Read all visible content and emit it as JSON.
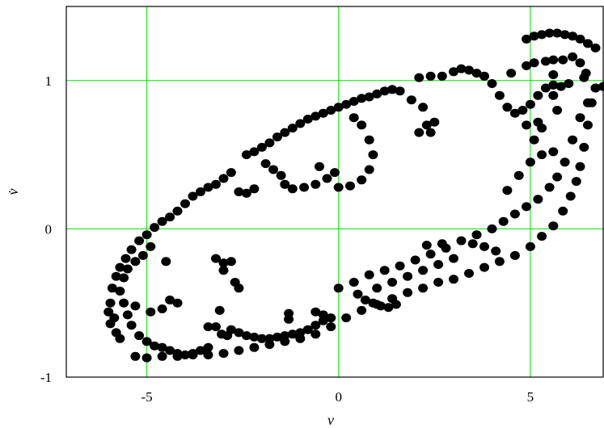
{
  "chart_data": {
    "type": "scatter",
    "title": "",
    "xlabel": "v",
    "ylabel": "v̇",
    "xlim": [
      -7.1,
      6.9
    ],
    "ylim": [
      -1.0,
      1.5
    ],
    "xticks": [
      -5,
      0,
      5
    ],
    "xtick_labels": [
      "-5",
      "0",
      "5"
    ],
    "yticks": [
      -1,
      0,
      1
    ],
    "ytick_labels": [
      "-1",
      "0",
      "1"
    ],
    "grid": true,
    "grid_color": "#00e000",
    "marker_color": "#000000",
    "series": [
      {
        "points": [
          [
            -5.95,
            -0.5
          ],
          [
            -5.9,
            -0.4
          ],
          [
            -5.8,
            -0.32
          ],
          [
            -5.7,
            -0.26
          ],
          [
            -5.55,
            -0.2
          ],
          [
            -5.4,
            -0.14
          ],
          [
            -5.2,
            -0.08
          ],
          [
            -5.0,
            -0.04
          ],
          [
            -4.8,
            0.01
          ],
          [
            -4.6,
            0.05
          ],
          [
            -4.4,
            0.08
          ],
          [
            -4.2,
            0.12
          ],
          [
            -4.0,
            0.17
          ],
          [
            -3.8,
            0.22
          ],
          [
            -3.6,
            0.25
          ],
          [
            -3.4,
            0.28
          ],
          [
            -3.2,
            0.3
          ],
          [
            -3.0,
            0.34
          ],
          [
            -2.8,
            0.38
          ],
          [
            -2.6,
            0.25
          ],
          [
            -2.4,
            0.24
          ],
          [
            -2.2,
            0.27
          ],
          [
            -2.4,
            0.5
          ],
          [
            -2.2,
            0.52
          ],
          [
            -2.0,
            0.55
          ],
          [
            -1.8,
            0.58
          ],
          [
            -1.6,
            0.62
          ],
          [
            -1.4,
            0.65
          ],
          [
            -1.2,
            0.68
          ],
          [
            -1.0,
            0.71
          ],
          [
            -0.8,
            0.74
          ],
          [
            -0.6,
            0.76
          ],
          [
            -0.4,
            0.78
          ],
          [
            -0.2,
            0.8
          ],
          [
            0.0,
            0.82
          ],
          [
            0.2,
            0.84
          ],
          [
            0.4,
            0.86
          ],
          [
            0.6,
            0.88
          ],
          [
            0.8,
            0.89
          ],
          [
            1.0,
            0.91
          ],
          [
            1.2,
            0.93
          ],
          [
            1.4,
            0.94
          ],
          [
            1.6,
            0.93
          ],
          [
            1.9,
            0.87
          ],
          [
            2.2,
            0.82
          ],
          [
            -1.9,
            0.44
          ],
          [
            -1.7,
            0.4
          ],
          [
            -1.5,
            0.36
          ],
          [
            -1.4,
            0.3
          ],
          [
            -1.2,
            0.27
          ],
          [
            -0.9,
            0.28
          ],
          [
            -0.6,
            0.3
          ],
          [
            -0.3,
            0.34
          ],
          [
            0.0,
            0.28
          ],
          [
            0.3,
            0.29
          ],
          [
            0.6,
            0.33
          ],
          [
            0.8,
            0.4
          ],
          [
            0.9,
            0.5
          ],
          [
            0.8,
            0.6
          ],
          [
            0.6,
            0.7
          ],
          [
            0.4,
            0.75
          ],
          [
            -0.1,
            0.38
          ],
          [
            -0.5,
            0.42
          ],
          [
            2.1,
            0.65
          ],
          [
            2.3,
            0.7
          ],
          [
            2.4,
            0.65
          ],
          [
            2.5,
            0.72
          ],
          [
            2.1,
            1.02
          ],
          [
            2.4,
            1.03
          ],
          [
            2.7,
            1.03
          ],
          [
            3.0,
            1.06
          ],
          [
            3.2,
            1.08
          ],
          [
            3.4,
            1.07
          ],
          [
            3.6,
            1.05
          ],
          [
            3.8,
            1.03
          ],
          [
            4.0,
            0.98
          ],
          [
            4.2,
            0.9
          ],
          [
            4.4,
            0.82
          ],
          [
            4.6,
            0.78
          ],
          [
            4.8,
            0.8
          ],
          [
            5.0,
            0.84
          ],
          [
            5.2,
            0.9
          ],
          [
            5.4,
            0.95
          ],
          [
            5.6,
            0.97
          ],
          [
            5.8,
            0.96
          ],
          [
            6.0,
            0.98
          ],
          [
            6.4,
            1.02
          ],
          [
            6.7,
            0.95
          ],
          [
            6.9,
            0.96
          ],
          [
            4.5,
            1.05
          ],
          [
            4.9,
            1.1
          ],
          [
            5.1,
            1.12
          ],
          [
            5.4,
            1.13
          ],
          [
            5.6,
            1.14
          ],
          [
            5.85,
            1.14
          ],
          [
            6.1,
            1.16
          ],
          [
            6.3,
            1.12
          ],
          [
            6.45,
            1.05
          ],
          [
            4.9,
            1.28
          ],
          [
            5.1,
            1.3
          ],
          [
            5.3,
            1.31
          ],
          [
            5.5,
            1.32
          ],
          [
            5.7,
            1.32
          ],
          [
            5.9,
            1.31
          ],
          [
            6.1,
            1.3
          ],
          [
            6.3,
            1.28
          ],
          [
            6.5,
            1.25
          ],
          [
            6.7,
            1.22
          ],
          [
            6.7,
            0.95
          ],
          [
            6.6,
            0.85
          ],
          [
            6.5,
            0.7
          ],
          [
            6.4,
            0.55
          ],
          [
            6.3,
            0.42
          ],
          [
            6.2,
            0.32
          ],
          [
            6.05,
            0.22
          ],
          [
            5.85,
            0.12
          ],
          [
            5.6,
            0.02
          ],
          [
            5.3,
            -0.05
          ],
          [
            5.0,
            -0.12
          ],
          [
            4.6,
            -0.18
          ],
          [
            4.2,
            -0.22
          ],
          [
            3.8,
            -0.26
          ],
          [
            3.4,
            -0.3
          ],
          [
            3.0,
            -0.34
          ],
          [
            2.6,
            -0.36
          ],
          [
            2.2,
            -0.4
          ],
          [
            1.8,
            -0.43
          ],
          [
            1.4,
            -0.47
          ],
          [
            1.0,
            -0.51
          ],
          [
            0.6,
            -0.55
          ],
          [
            0.2,
            -0.6
          ],
          [
            -0.2,
            -0.66
          ],
          [
            -0.6,
            -0.71
          ],
          [
            -1.0,
            -0.74
          ],
          [
            -1.4,
            -0.76
          ],
          [
            -1.8,
            -0.78
          ],
          [
            -2.2,
            -0.8
          ],
          [
            -2.6,
            -0.82
          ],
          [
            -3.0,
            -0.84
          ],
          [
            -3.4,
            -0.85
          ],
          [
            -3.8,
            -0.85
          ],
          [
            -4.2,
            -0.86
          ],
          [
            -4.6,
            -0.86
          ],
          [
            -5.0,
            -0.87
          ],
          [
            -5.3,
            -0.86
          ],
          [
            6.5,
            0.85
          ],
          [
            6.3,
            0.75
          ],
          [
            6.1,
            0.6
          ],
          [
            5.9,
            0.45
          ],
          [
            5.7,
            0.35
          ],
          [
            5.5,
            0.28
          ],
          [
            5.2,
            0.2
          ],
          [
            4.9,
            0.15
          ],
          [
            4.6,
            0.1
          ],
          [
            4.3,
            0.05
          ],
          [
            4.0,
            0.0
          ],
          [
            3.6,
            -0.04
          ],
          [
            3.2,
            -0.08
          ],
          [
            2.8,
            -0.13
          ],
          [
            2.4,
            -0.17
          ],
          [
            2.0,
            -0.21
          ],
          [
            1.6,
            -0.25
          ],
          [
            1.2,
            -0.28
          ],
          [
            0.8,
            -0.31
          ],
          [
            0.4,
            -0.36
          ],
          [
            0.0,
            -0.4
          ],
          [
            5.6,
            0.52
          ],
          [
            5.3,
            0.5
          ],
          [
            5.0,
            0.45
          ],
          [
            4.7,
            0.36
          ],
          [
            4.4,
            0.26
          ],
          [
            3.0,
            -0.2
          ],
          [
            2.6,
            -0.24
          ],
          [
            2.2,
            -0.28
          ],
          [
            1.8,
            -0.32
          ],
          [
            1.4,
            -0.36
          ],
          [
            1.0,
            -0.4
          ],
          [
            -2.8,
            -0.68
          ],
          [
            -2.6,
            -0.7
          ],
          [
            -2.4,
            -0.72
          ],
          [
            -2.2,
            -0.73
          ],
          [
            -2.0,
            -0.74
          ],
          [
            -1.8,
            -0.74
          ],
          [
            -1.6,
            -0.73
          ],
          [
            -1.4,
            -0.72
          ],
          [
            -1.2,
            -0.71
          ],
          [
            -1.0,
            -0.7
          ],
          [
            -0.8,
            -0.68
          ],
          [
            -0.6,
            -0.65
          ],
          [
            -0.4,
            -0.62
          ],
          [
            -0.2,
            -0.6
          ],
          [
            -5.7,
            -0.42
          ],
          [
            -5.6,
            -0.5
          ],
          [
            -5.5,
            -0.58
          ],
          [
            -5.4,
            -0.65
          ],
          [
            -5.2,
            -0.72
          ],
          [
            -5.0,
            -0.76
          ],
          [
            -4.8,
            -0.79
          ],
          [
            -4.6,
            -0.8
          ],
          [
            -4.4,
            -0.82
          ],
          [
            -4.2,
            -0.84
          ],
          [
            -4.0,
            -0.85
          ],
          [
            -3.8,
            -0.84
          ],
          [
            -3.6,
            -0.82
          ],
          [
            -3.4,
            -0.8
          ],
          [
            -6.0,
            -0.56
          ],
          [
            -5.95,
            -0.64
          ],
          [
            -5.8,
            -0.7
          ],
          [
            -5.7,
            -0.74
          ],
          [
            -5.85,
            -0.6
          ],
          [
            -5.6,
            -0.33
          ],
          [
            -5.5,
            -0.27
          ],
          [
            -5.3,
            -0.22
          ],
          [
            -5.1,
            -0.18
          ],
          [
            -4.9,
            -0.12
          ],
          [
            -4.5,
            -0.22
          ],
          [
            -3.2,
            -0.2
          ],
          [
            -3.0,
            -0.23
          ],
          [
            -2.8,
            -0.22
          ],
          [
            -3.0,
            -0.28
          ],
          [
            -2.7,
            -0.36
          ],
          [
            -2.6,
            -0.4
          ],
          [
            -3.1,
            -0.55
          ],
          [
            -3.2,
            -0.66
          ],
          [
            -3.05,
            -0.71
          ],
          [
            -2.9,
            -0.72
          ],
          [
            -3.4,
            -0.66
          ],
          [
            -4.4,
            -0.48
          ],
          [
            -4.2,
            -0.5
          ],
          [
            -4.6,
            -0.54
          ],
          [
            -5.3,
            -0.52
          ],
          [
            -4.9,
            -0.56
          ],
          [
            -1.3,
            -0.57
          ],
          [
            -1.3,
            -0.61
          ],
          [
            -0.6,
            -0.56
          ],
          [
            -0.4,
            -0.58
          ],
          [
            0.5,
            -0.44
          ],
          [
            0.7,
            -0.48
          ],
          [
            0.9,
            -0.5
          ],
          [
            1.1,
            -0.52
          ],
          [
            1.3,
            -0.53
          ],
          [
            1.5,
            -0.51
          ],
          [
            3.5,
            -0.1
          ],
          [
            3.8,
            -0.12
          ],
          [
            4.1,
            -0.15
          ],
          [
            2.7,
            -0.1
          ],
          [
            2.3,
            -0.11
          ],
          [
            5.3,
            0.68
          ],
          [
            5.2,
            0.72
          ],
          [
            5.1,
            0.6
          ],
          [
            4.9,
            0.7
          ],
          [
            5.6,
            1.04
          ],
          [
            5.6,
            0.9
          ],
          [
            5.7,
            0.8
          ]
        ]
      }
    ]
  }
}
